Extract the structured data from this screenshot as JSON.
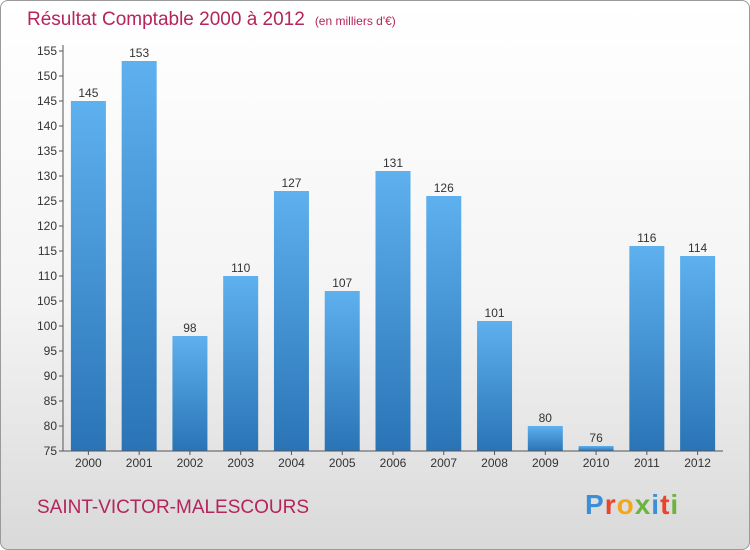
{
  "header": {
    "title": "Résultat Comptable 2000 à 2012",
    "subtitle": "(en milliers d'€)"
  },
  "footer": {
    "commune": "SAINT-VICTOR-MALESCOURS",
    "brand_letters": [
      {
        "char": "P",
        "color": "#3a8fd6"
      },
      {
        "char": "r",
        "color": "#e8452c"
      },
      {
        "char": "o",
        "color": "#f2a71b"
      },
      {
        "char": "x",
        "color": "#6cb33f"
      },
      {
        "char": "i",
        "color": "#3a8fd6"
      },
      {
        "char": "t",
        "color": "#e8452c"
      },
      {
        "char": "i",
        "color": "#6cb33f"
      }
    ]
  },
  "chart_data": {
    "type": "bar",
    "title": "Résultat Comptable 2000 à 2012",
    "xlabel": "",
    "ylabel": "",
    "categories": [
      "2000",
      "2001",
      "2002",
      "2003",
      "2004",
      "2005",
      "2006",
      "2007",
      "2008",
      "2009",
      "2010",
      "2011",
      "2012"
    ],
    "values": [
      145,
      153,
      98,
      110,
      127,
      107,
      131,
      126,
      101,
      80,
      76,
      116,
      114
    ],
    "ylim": [
      75,
      155
    ],
    "yticks": [
      75,
      80,
      85,
      90,
      95,
      100,
      105,
      110,
      115,
      120,
      125,
      130,
      135,
      140,
      145,
      150,
      155
    ],
    "grid": false,
    "legend": "none",
    "bar_color_top": "#5eb0ee",
    "bar_color_bottom": "#2a74b6"
  }
}
